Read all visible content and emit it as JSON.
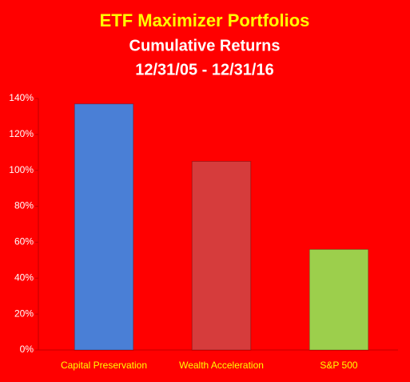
{
  "chart_data": {
    "type": "bar",
    "title": "ETF Maximizer Portfolios",
    "subtitle": "Cumulative Returns",
    "period": "12/31/05 - 12/31/16",
    "categories": [
      "Capital Preservation",
      "Wealth Acceleration",
      "S&P 500"
    ],
    "values": [
      137,
      105,
      56
    ],
    "colors": [
      "#4a7fd6",
      "#d63c3c",
      "#9ccf4c"
    ],
    "ylim": [
      0,
      140
    ],
    "yticks": [
      {
        "value": 0,
        "label": "0%"
      },
      {
        "value": 20,
        "label": "20%"
      },
      {
        "value": 40,
        "label": "40%"
      },
      {
        "value": 60,
        "label": "60%"
      },
      {
        "value": 80,
        "label": "80%"
      },
      {
        "value": 100,
        "label": "100%"
      },
      {
        "value": 120,
        "label": "120%"
      },
      {
        "value": 140,
        "label": "140%"
      }
    ],
    "grid": false
  }
}
